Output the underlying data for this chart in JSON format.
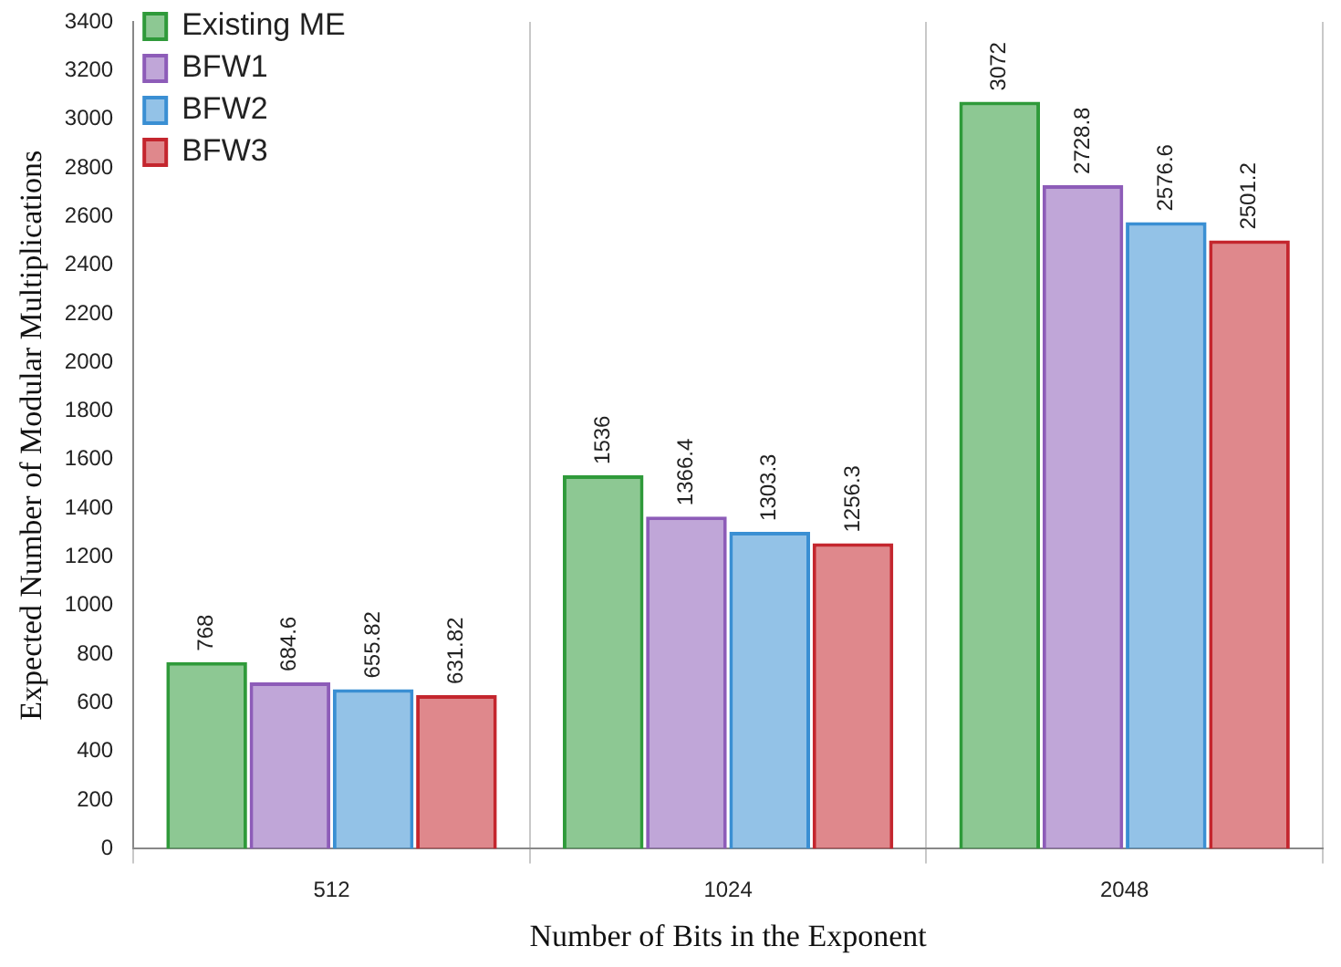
{
  "chart_data": {
    "type": "bar",
    "xlabel": "Number of Bits in the Exponent",
    "ylabel": "Expected Number of Modular Multiplications",
    "categories": [
      "512",
      "1024",
      "2048"
    ],
    "series": [
      {
        "name": "Existing ME",
        "color": "#2f9a3a",
        "values": [
          768,
          1536,
          3072
        ],
        "value_labels": [
          "768",
          "1536",
          "3072"
        ]
      },
      {
        "name": "BFW1",
        "color": "#8d5cb8",
        "values": [
          684.6,
          1366.4,
          2728.8
        ],
        "value_labels": [
          "684.6",
          "1366.4",
          "2728.8"
        ]
      },
      {
        "name": "BFW2",
        "color": "#3a8fd3",
        "values": [
          655.82,
          1303.3,
          2576.6
        ],
        "value_labels": [
          "655.82",
          "1303.3",
          "2576.6"
        ]
      },
      {
        "name": "BFW3",
        "color": "#c4262e",
        "values": [
          631.82,
          1256.3,
          2501.2
        ],
        "value_labels": [
          "631.82",
          "1256.3",
          "2501.2"
        ]
      }
    ],
    "ylim": [
      0,
      3400
    ],
    "yticks": [
      0,
      200,
      400,
      600,
      800,
      1000,
      1200,
      1400,
      1600,
      1800,
      2000,
      2200,
      2400,
      2600,
      2800,
      3000,
      3200,
      3400
    ],
    "grid": "x",
    "legend": "top left"
  }
}
